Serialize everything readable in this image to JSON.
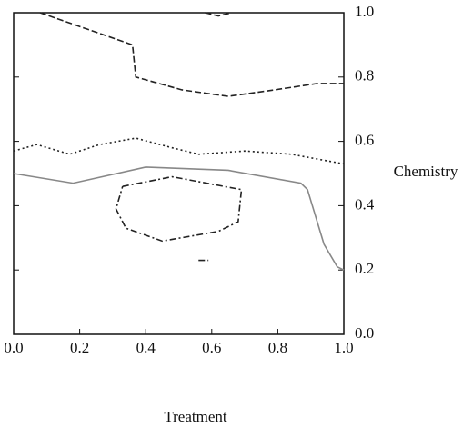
{
  "chart_data": {
    "type": "line",
    "xlabel": "Treatment",
    "ylabel": "Chemistry",
    "xlim": [
      0,
      1
    ],
    "ylim": [
      0,
      1
    ],
    "xticks": [
      {
        "value": 0,
        "label": "0.0"
      },
      0.2,
      0.4,
      0.6,
      0.8,
      {
        "value": 1,
        "label": "1.0"
      }
    ],
    "yticks": [
      {
        "value": 0,
        "label": "0.0"
      },
      0.2,
      0.4,
      0.6,
      0.8,
      {
        "value": 1,
        "label": "1.0"
      }
    ],
    "y_axis_side": "right",
    "series": [
      {
        "color": "#222",
        "dash": "7 3",
        "x": [
          0.08,
          0.36,
          0.37,
          0.51,
          0.65,
          0.79,
          0.92,
          1.0,
          null,
          0.58,
          0.62,
          0.66
        ],
        "values": [
          1.0,
          0.9,
          0.8,
          0.76,
          0.74,
          0.76,
          0.78,
          0.78,
          null,
          1.0,
          0.99,
          1.0
        ]
      },
      {
        "color": "#222",
        "dash": "2 3",
        "x": [
          0,
          0.07,
          0.17,
          0.26,
          0.37,
          0.48,
          0.56,
          0.7,
          0.84,
          1.0
        ],
        "values": [
          0.57,
          0.59,
          0.56,
          0.59,
          0.61,
          0.58,
          0.56,
          0.57,
          0.56,
          0.53
        ]
      },
      {
        "color": "#888",
        "dash": "none",
        "x": [
          0,
          0.18,
          0.4,
          0.65,
          0.87,
          0.89,
          0.94,
          0.98,
          1.0
        ],
        "values": [
          0.5,
          0.47,
          0.52,
          0.51,
          0.47,
          0.45,
          0.28,
          0.21,
          0.2
        ]
      },
      {
        "color": "#222",
        "dash": "7 3 2 3",
        "x": [
          0.33,
          0.48,
          0.69,
          0.68,
          0.62,
          0.45,
          0.34,
          0.31,
          0.33,
          null,
          0.56,
          0.59
        ],
        "values": [
          0.46,
          0.49,
          0.45,
          0.35,
          0.32,
          0.29,
          0.33,
          0.39,
          0.46,
          null,
          0.23,
          0.23
        ]
      }
    ]
  }
}
